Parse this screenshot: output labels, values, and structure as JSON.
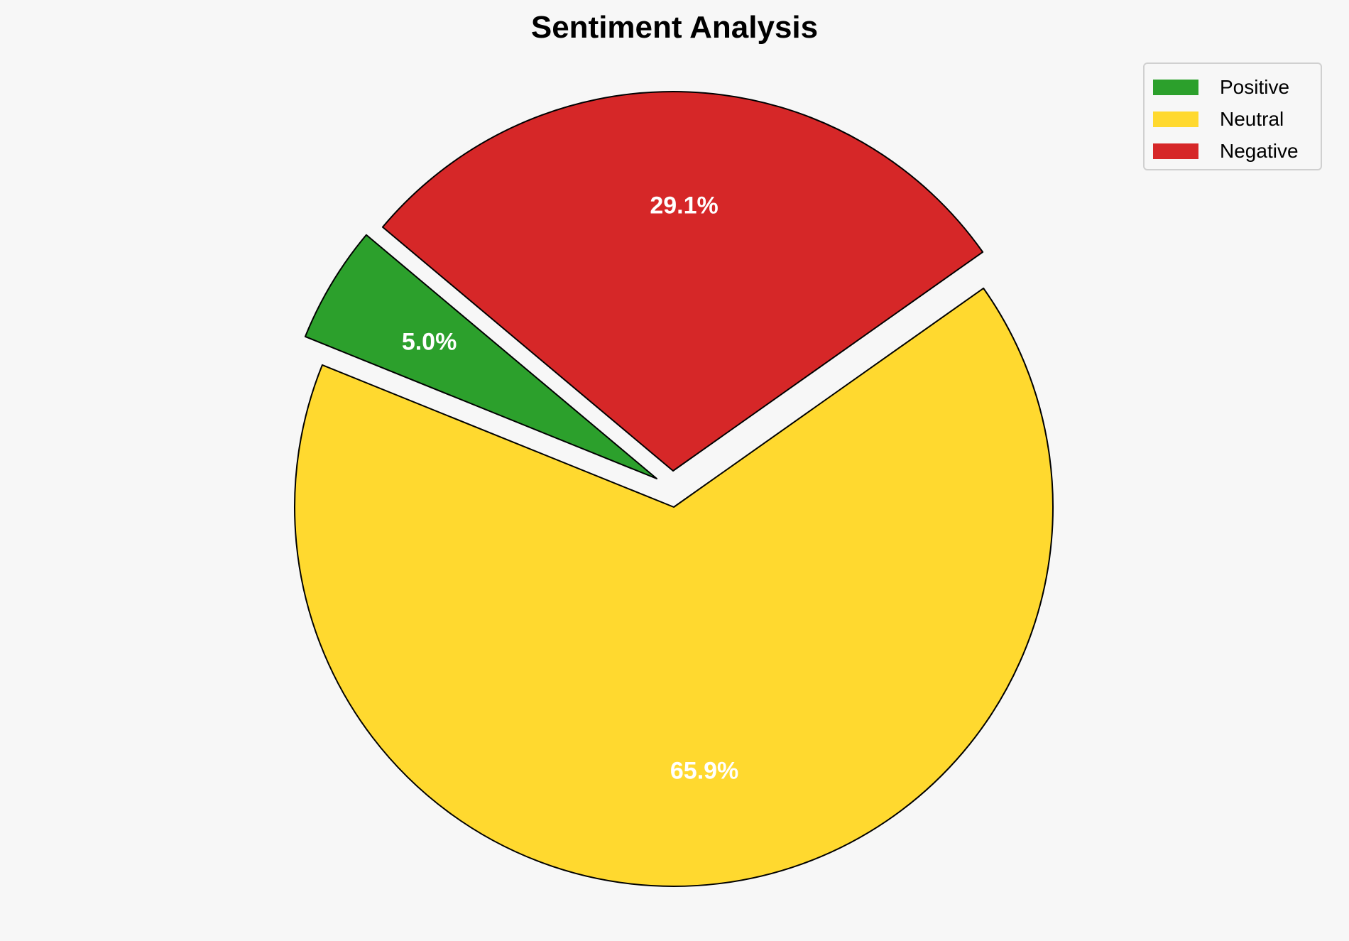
{
  "chart_data": {
    "type": "pie",
    "title": "Sentiment Analysis",
    "categories": [
      "Positive",
      "Neutral",
      "Negative"
    ],
    "values": [
      5.0,
      65.9,
      29.1
    ],
    "labels": [
      "5.0%",
      "65.9%",
      "29.1%"
    ],
    "colors": [
      "#2ca02c",
      "#ffd92f",
      "#d62728"
    ],
    "explode": [
      0.1,
      0,
      0.1
    ],
    "startangle": 140,
    "legend": {
      "placement": "top-right",
      "entries": [
        "Positive",
        "Neutral",
        "Negative"
      ]
    }
  }
}
